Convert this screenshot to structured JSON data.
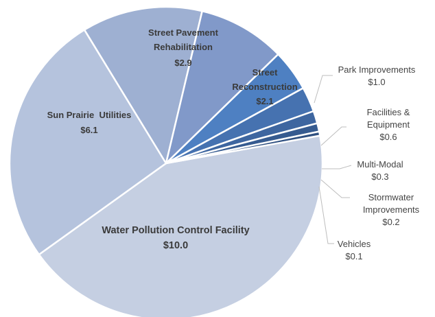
{
  "chart_data": {
    "type": "pie",
    "slices": [
      {
        "label": "Water Pollution Control Facility",
        "value": 10.0,
        "value_label": "$10.0",
        "color": "#c5cfe2"
      },
      {
        "label": "Sun Prairie  Utilities",
        "value": 6.1,
        "value_label": "$6.1",
        "color": "#b5c3dd"
      },
      {
        "label": "Street Pavement Rehabilitation",
        "value": 2.9,
        "value_label": "$2.9",
        "color": "#9eb0d2"
      },
      {
        "label": "Street Reconstruction",
        "value": 2.1,
        "value_label": "$2.1",
        "color": "#8199c9"
      },
      {
        "label": "Park Improvements",
        "value": 1.0,
        "value_label": "$1.0",
        "color": "#4e80c2"
      },
      {
        "label": "Facilities & Equipment",
        "value": 0.6,
        "value_label": "$0.6",
        "color": "#4672b0"
      },
      {
        "label": "Multi-Modal",
        "value": 0.3,
        "value_label": "$0.3",
        "color": "#3e66a0"
      },
      {
        "label": "Stormwater Improvements",
        "value": 0.2,
        "value_label": "$0.2",
        "color": "#365b90"
      },
      {
        "label": "Vehicles",
        "value": 0.1,
        "value_label": "$0.1",
        "color": "#2e4f80"
      }
    ]
  },
  "labels": {
    "water": {
      "name": "Water Pollution Control Facility",
      "value": "$10.0"
    },
    "utilities": {
      "name": "Sun Prairie  Utilities",
      "value": "$6.1"
    },
    "pavement": {
      "line1": "Street Pavement",
      "line2": "Rehabilitation",
      "value": "$2.9"
    },
    "reconstruction": {
      "line1": "Street",
      "line2": "Reconstruction",
      "value": "$2.1"
    },
    "park": {
      "name": "Park Improvements",
      "value": "$1.0"
    },
    "facilities": {
      "line1": "Facilities &",
      "line2": "Equipment",
      "value": "$0.6"
    },
    "multimodal": {
      "name": "Multi-Modal",
      "value": "$0.3"
    },
    "stormwater": {
      "line1": "Stormwater",
      "line2": "Improvements",
      "value": "$0.2"
    },
    "vehicles": {
      "name": "Vehicles",
      "value": "$0.1"
    }
  }
}
